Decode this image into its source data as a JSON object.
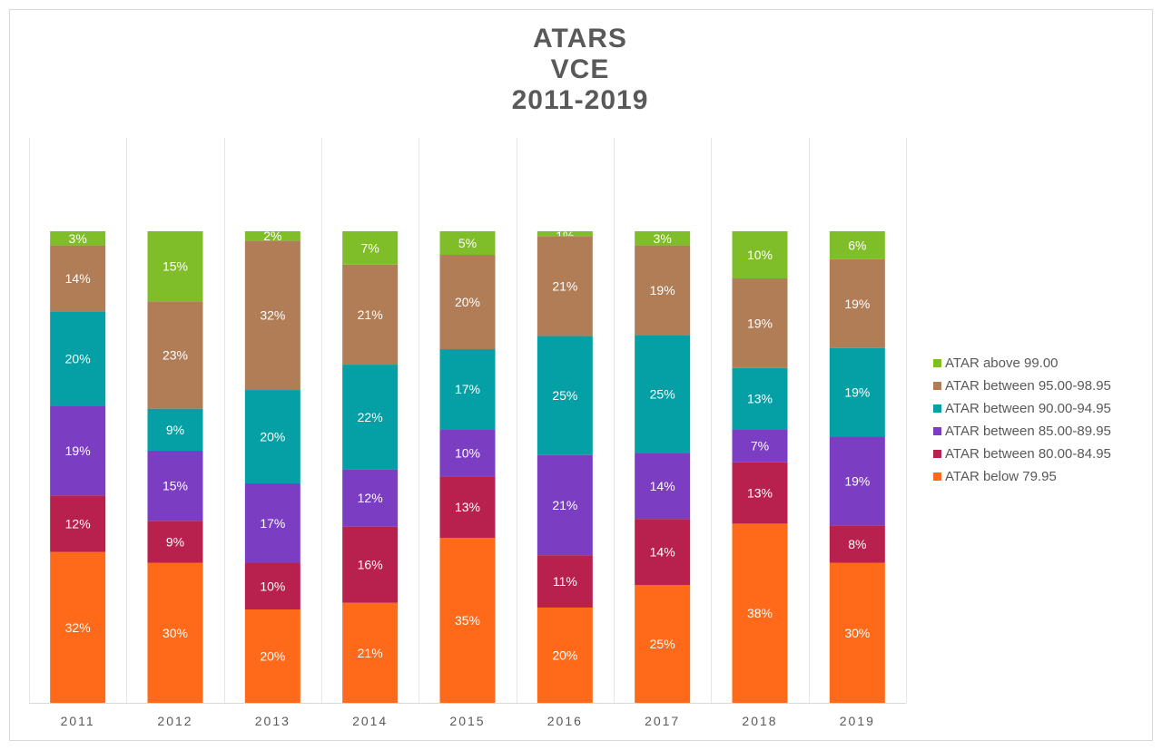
{
  "title_lines": [
    "ATARS",
    "VCE",
    "2011-2019"
  ],
  "chart_data": {
    "type": "bar",
    "stacked": true,
    "percent_stacked": true,
    "title": "ATARS VCE 2011-2019",
    "categories": [
      "2011",
      "2012",
      "2013",
      "2014",
      "2015",
      "2016",
      "2017",
      "2018",
      "2019"
    ],
    "series": [
      {
        "name": "ATAR below 79.95",
        "color": "#ff6a1a",
        "values": [
          32,
          30,
          20,
          21,
          35,
          20,
          25,
          38,
          30
        ]
      },
      {
        "name": "ATAR between 80.00-84.95",
        "color": "#b8204e",
        "values": [
          12,
          9,
          10,
          16,
          13,
          11,
          14,
          13,
          8
        ]
      },
      {
        "name": "ATAR between 85.00-89.95",
        "color": "#7b3ec2",
        "values": [
          19,
          15,
          17,
          12,
          10,
          21,
          14,
          7,
          19
        ]
      },
      {
        "name": "ATAR between 90.00-94.95",
        "color": "#05a0a6",
        "values": [
          20,
          9,
          20,
          22,
          17,
          25,
          25,
          13,
          19
        ]
      },
      {
        "name": "ATAR between 95.00-98.95",
        "color": "#b07d57",
        "values": [
          14,
          23,
          32,
          21,
          20,
          21,
          19,
          19,
          19
        ]
      },
      {
        "name": "ATAR above 99.00",
        "color": "#80be29",
        "values": [
          3,
          15,
          2,
          7,
          5,
          1,
          3,
          10,
          6
        ]
      }
    ],
    "ylim": [
      0,
      100
    ],
    "data_labels": true,
    "data_label_format": "{v}%",
    "legend_position": "right",
    "legend_order": [
      "ATAR above 99.00",
      "ATAR between 95.00-98.95",
      "ATAR between 90.00-94.95",
      "ATAR between 85.00-89.95",
      "ATAR between 80.00-84.95",
      "ATAR below 79.95"
    ],
    "vertical_category_separators": true
  }
}
